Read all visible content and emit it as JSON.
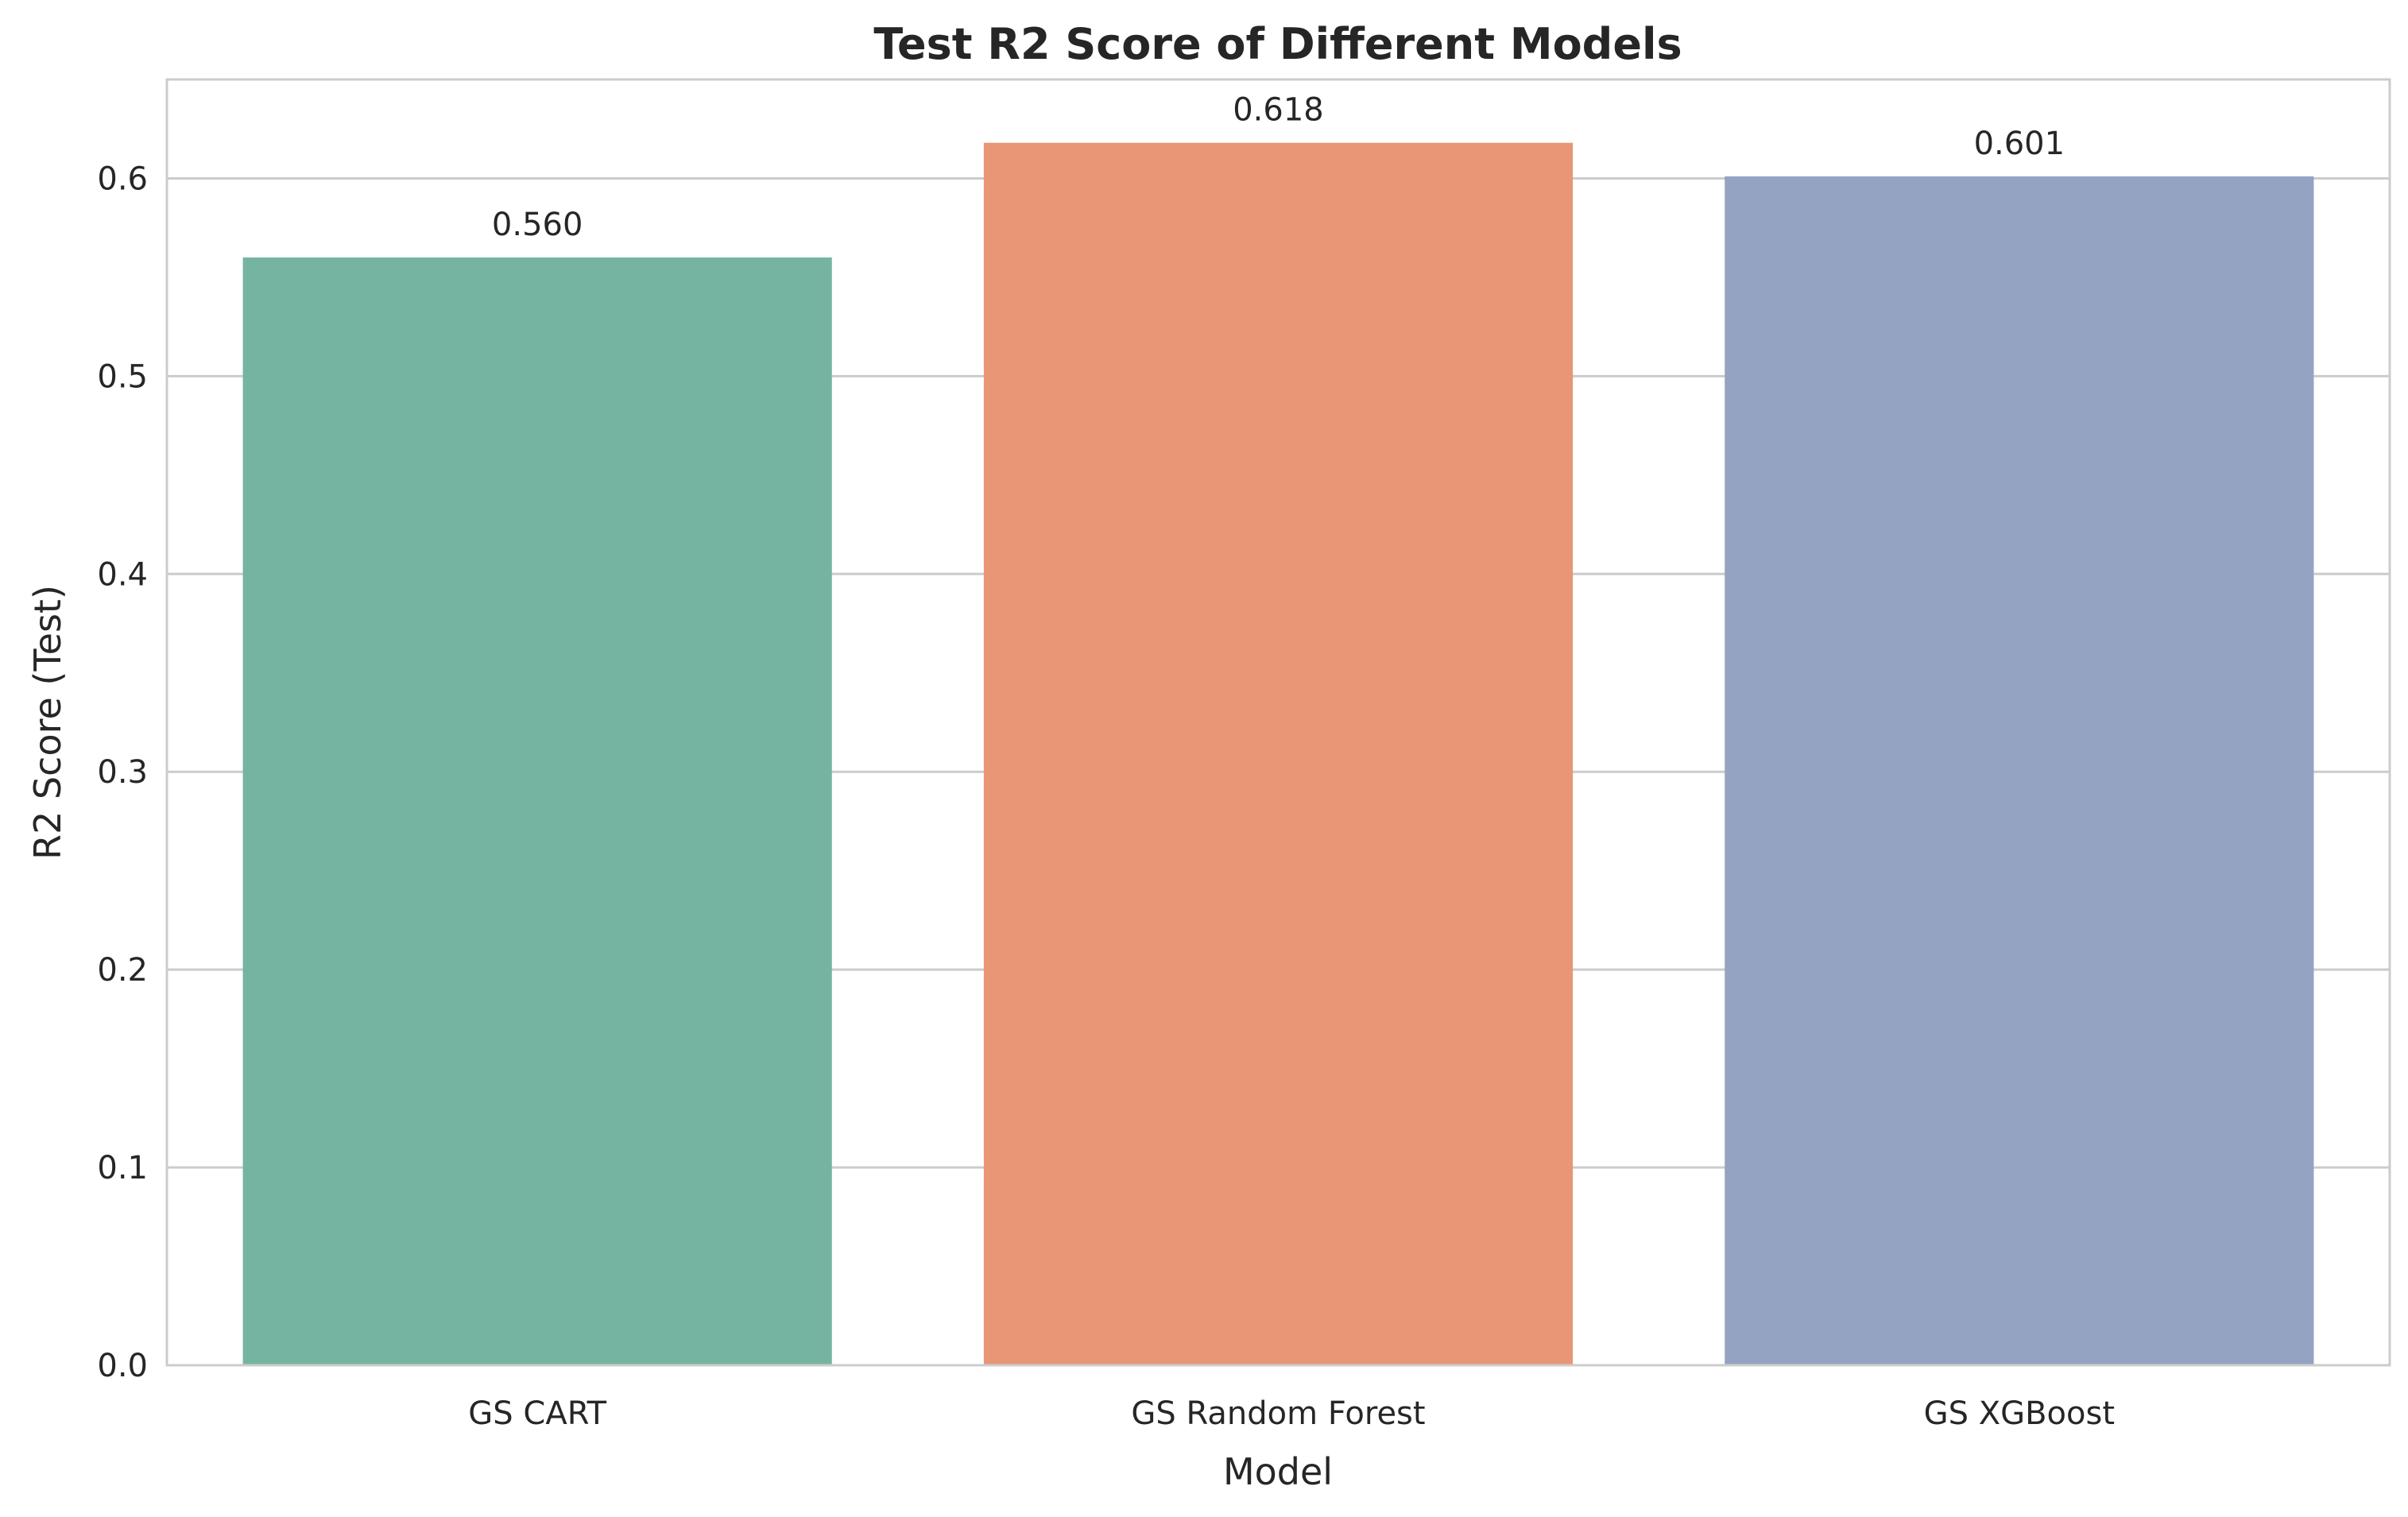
{
  "chart_data": {
    "type": "bar",
    "title": "Test R2 Score of Different Models",
    "xlabel": "Model",
    "ylabel": "R2 Score (Test)",
    "categories": [
      "GS CART",
      "GS Random Forest",
      "GS XGBoost"
    ],
    "values": [
      0.56,
      0.618,
      0.601
    ],
    "value_labels": [
      "0.560",
      "0.618",
      "0.601"
    ],
    "colors": [
      "#75b4a0",
      "#e89675",
      "#95a3c2"
    ],
    "ylim": [
      0,
      0.65
    ],
    "yticks": [
      0.0,
      0.1,
      0.2,
      0.3,
      0.4,
      0.5,
      0.6
    ],
    "ytick_labels": [
      "0.0",
      "0.1",
      "0.2",
      "0.3",
      "0.4",
      "0.5",
      "0.6"
    ],
    "grid": "horizontal",
    "legend": "none",
    "grid_color": "#cccccc",
    "spine_color": "#cccccc"
  }
}
